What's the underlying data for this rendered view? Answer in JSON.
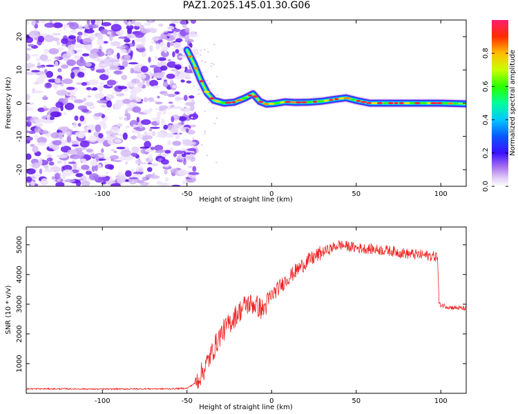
{
  "title": "PAZ1.2025.145.01.30.G06",
  "colorbar": {
    "label": "Normalized spectral amplitude",
    "ticks": [
      "0.0",
      "0.2",
      "0.4",
      "0.6",
      "0.8"
    ],
    "tick_values": [
      0.0,
      0.2,
      0.4,
      0.6,
      0.8
    ],
    "range": [
      0,
      1
    ]
  },
  "chart_data": [
    {
      "type": "heatmap",
      "xlabel": "Height of straight line (km)",
      "ylabel": "Frequency (Hz)",
      "xlim": [
        -145,
        115
      ],
      "ylim": [
        -25,
        25
      ],
      "xticks": [
        -100,
        -50,
        0,
        50,
        100
      ],
      "yticks": [
        -20,
        -10,
        0,
        10,
        20
      ],
      "noise_region_x": [
        -145,
        -48
      ],
      "signal_track": [
        {
          "x": -50,
          "y": 16
        },
        {
          "x": -46,
          "y": 12
        },
        {
          "x": -42,
          "y": 7
        },
        {
          "x": -38,
          "y": 3
        },
        {
          "x": -34,
          "y": 0.8
        },
        {
          "x": -28,
          "y": 0
        },
        {
          "x": -22,
          "y": 0.3
        },
        {
          "x": -16,
          "y": 1.5
        },
        {
          "x": -11,
          "y": 2.8
        },
        {
          "x": -7,
          "y": 0.5
        },
        {
          "x": -3,
          "y": -0.3
        },
        {
          "x": 2,
          "y": -0.1
        },
        {
          "x": 8,
          "y": 0.4
        },
        {
          "x": 14,
          "y": 0.2
        },
        {
          "x": 22,
          "y": 0.3
        },
        {
          "x": 30,
          "y": 0.6
        },
        {
          "x": 38,
          "y": 1.2
        },
        {
          "x": 44,
          "y": 1.6
        },
        {
          "x": 50,
          "y": 0.8
        },
        {
          "x": 58,
          "y": 0
        },
        {
          "x": 70,
          "y": 0
        },
        {
          "x": 85,
          "y": 0
        },
        {
          "x": 100,
          "y": 0
        },
        {
          "x": 115,
          "y": -0.2
        }
      ]
    },
    {
      "type": "line",
      "xlabel": "Height of straight line (km)",
      "ylabel": "SNR (10 * v/v)",
      "xlim": [
        -145,
        115
      ],
      "ylim": [
        0,
        5600
      ],
      "xticks": [
        -100,
        -50,
        0,
        50,
        100
      ],
      "yticks": [
        1000,
        2000,
        3000,
        4000,
        5000
      ],
      "series": [
        {
          "color": "#ee2222",
          "x": [
            -145,
            -120,
            -100,
            -80,
            -60,
            -50,
            -45,
            -40,
            -35,
            -30,
            -25,
            -20,
            -15,
            -10,
            -5,
            0,
            10,
            20,
            30,
            40,
            50,
            60,
            70,
            80,
            90,
            98,
            99,
            105,
            115
          ],
          "y": [
            150,
            150,
            140,
            150,
            150,
            170,
            350,
            800,
            1400,
            2000,
            2350,
            2700,
            3000,
            3000,
            2800,
            3300,
            3900,
            4400,
            4750,
            5000,
            4900,
            4850,
            4800,
            4700,
            4650,
            4600,
            3000,
            2900,
            2850
          ]
        }
      ]
    }
  ]
}
